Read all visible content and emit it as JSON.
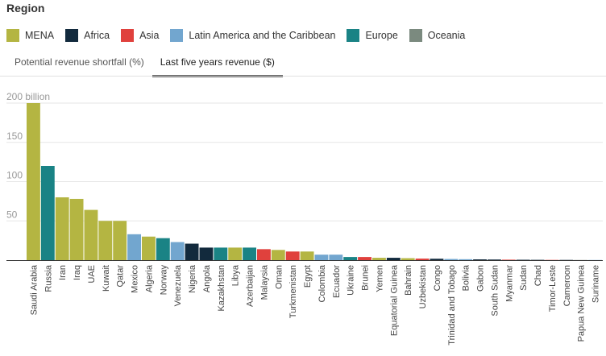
{
  "legend": {
    "title": "Region",
    "items": [
      {
        "label": "MENA",
        "color": "#b4b542"
      },
      {
        "label": "Africa",
        "color": "#122a3d"
      },
      {
        "label": "Asia",
        "color": "#e0413d"
      },
      {
        "label": "Latin America and the Caribbean",
        "color": "#72a6cf"
      },
      {
        "label": "Europe",
        "color": "#1a8385"
      },
      {
        "label": "Oceania",
        "color": "#7b8a7f"
      }
    ]
  },
  "tabs": [
    {
      "label": "Potential revenue shortfall (%)",
      "active": false
    },
    {
      "label": "Last five years revenue ($)",
      "active": true
    }
  ],
  "chart_data": {
    "type": "bar",
    "title": "Last five years revenue ($)",
    "xlabel": "",
    "ylabel": "",
    "ylim": [
      0,
      200
    ],
    "yticks": [
      {
        "value": 200,
        "label": "200 billion"
      },
      {
        "value": 150,
        "label": "150"
      },
      {
        "value": 100,
        "label": "100"
      },
      {
        "value": 50,
        "label": "50"
      }
    ],
    "grid": true,
    "categories": [
      "Saudi Arabia",
      "Russia",
      "Iran",
      "Iraq",
      "UAE",
      "Kuwait",
      "Qatar",
      "Mexico",
      "Algeria",
      "Norway",
      "Venezuela",
      "Nigeria",
      "Angola",
      "Kazakhstan",
      "Libya",
      "Azerbaijan",
      "Malaysia",
      "Oman",
      "Turkmenistan",
      "Egypt",
      "Colombia",
      "Ecuador",
      "Ukraine",
      "Brunei",
      "Yemen",
      "Equatorial Guinea",
      "Bahrain",
      "Uzbekistan",
      "Congo",
      "Trinidad and Tobago",
      "Bolivia",
      "Gabon",
      "South Sudan",
      "Myanmar",
      "Sudan",
      "Chad",
      "Timor-Leste",
      "Cameroon",
      "Papua New Guinea",
      "Suriname"
    ],
    "values": [
      200,
      120,
      80,
      78,
      64,
      50,
      50,
      33,
      30,
      28,
      23,
      21,
      16,
      16,
      16,
      16,
      14,
      13,
      11,
      11,
      7,
      7,
      4,
      4,
      3,
      3,
      2.5,
      2,
      1.8,
      1.5,
      1.2,
      1,
      0.8,
      0.6,
      0.5,
      0.4,
      0.3,
      0.3,
      0.2,
      0.2
    ],
    "regions": [
      "MENA",
      "Europe",
      "MENA",
      "MENA",
      "MENA",
      "MENA",
      "MENA",
      "Latin America and the Caribbean",
      "MENA",
      "Europe",
      "Latin America and the Caribbean",
      "Africa",
      "Africa",
      "Europe",
      "MENA",
      "Europe",
      "Asia",
      "MENA",
      "Asia",
      "MENA",
      "Latin America and the Caribbean",
      "Latin America and the Caribbean",
      "Europe",
      "Asia",
      "MENA",
      "Africa",
      "MENA",
      "Asia",
      "Africa",
      "Latin America and the Caribbean",
      "Latin America and the Caribbean",
      "Africa",
      "Africa",
      "Asia",
      "Africa",
      "Africa",
      "Asia",
      "Africa",
      "Oceania",
      "Latin America and the Caribbean"
    ]
  }
}
